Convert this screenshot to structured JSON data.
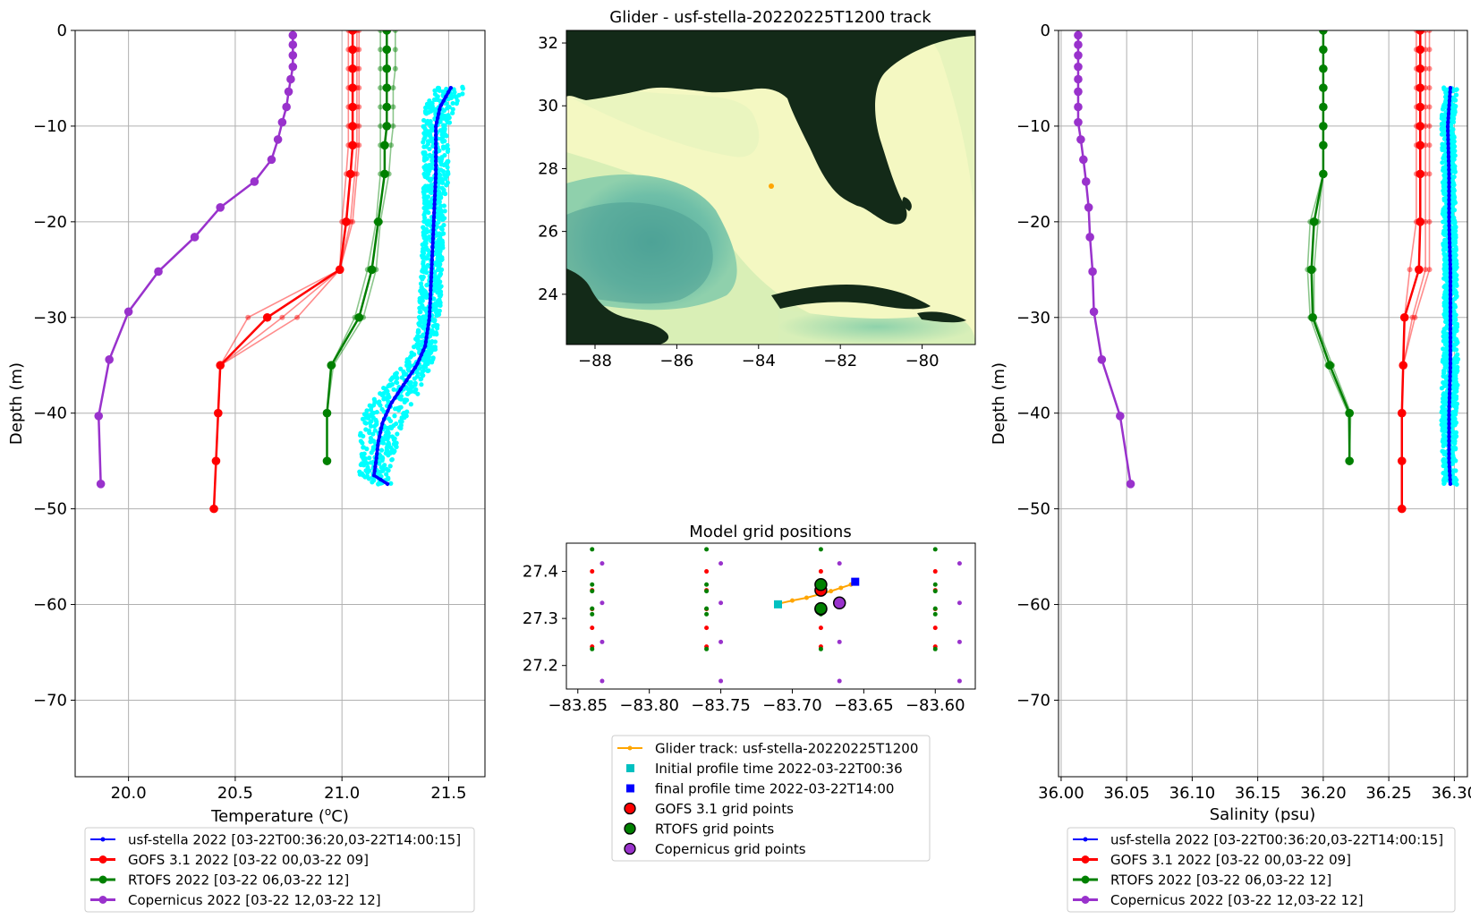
{
  "colors": {
    "glider": "#0000ff",
    "glider_scatter": "#00ffff",
    "gofs": "#ff0000",
    "rtofs": "#008000",
    "copernicus": "#9932cc",
    "track": "#ffa500",
    "initial_marker": "#00c0c0",
    "final_marker": "#0000ff",
    "land": "#132a18",
    "ocean_shallow": "#fbfcc8",
    "ocean_deep": "#5fb8a8"
  },
  "panels": {
    "map": {
      "title": "Glider - usf-stella-20220225T1200 track",
      "xticks": [
        "−88",
        "−86",
        "−84",
        "−82",
        "−80"
      ],
      "yticks": [
        "32",
        "30",
        "28",
        "26",
        "24"
      ]
    },
    "grid": {
      "title": "Model grid positions",
      "xticks": [
        "−83.85",
        "−83.80",
        "−83.75",
        "−83.70",
        "−83.65",
        "−83.60"
      ],
      "yticks": [
        "27.4",
        "27.3",
        "27.2"
      ]
    }
  },
  "legends": {
    "profile": [
      "usf-stella 2022 [03-22T00:36:20,03-22T14:00:15]",
      "GOFS 3.1 2022 [03-22 00,03-22 09]",
      "RTOFS 2022 [03-22 06,03-22 12]",
      "Copernicus 2022 [03-22 12,03-22 12]"
    ],
    "grid": [
      "Glider track: usf-stella-20220225T1200",
      "Initial profile time 2022-03-22T00:36",
      "final profile time 2022-03-22T14:00",
      "GOFS 3.1 grid points",
      "RTOFS grid points",
      "Copernicus grid points"
    ]
  },
  "chart_data": [
    {
      "type": "line",
      "title": "",
      "xlabel_main": "Temperature (",
      "xlabel_sup": "o",
      "xlabel_unit": "C)",
      "ylabel": "Depth (m)",
      "xlim": [
        19.75,
        21.67
      ],
      "ylim": [
        -78,
        0
      ],
      "xticks": [
        20.0,
        20.5,
        21.0,
        21.5
      ],
      "xtick_labels": [
        "20.0",
        "20.5",
        "21.0",
        "21.5"
      ],
      "yticks": [
        0,
        -10,
        -20,
        -30,
        -40,
        -50,
        -60,
        -70
      ],
      "ytick_labels": [
        "0",
        "−10",
        "−20",
        "−30",
        "−40",
        "−50",
        "−60",
        "−70"
      ],
      "grid": true,
      "series": [
        {
          "name": "usf-stella 2022 [03-22T00:36:20,03-22T14:00:15]",
          "depth": [
            -6,
            -8,
            -10,
            -12,
            -15,
            -20,
            -25,
            -30,
            -33,
            -35,
            -37,
            -39,
            -41,
            -43,
            -45,
            -46.5,
            -47.5
          ],
          "values": [
            21.51,
            21.46,
            21.44,
            21.44,
            21.44,
            21.43,
            21.42,
            21.41,
            21.39,
            21.35,
            21.29,
            21.23,
            21.19,
            21.17,
            21.16,
            21.15,
            21.22
          ],
          "band": [
            0.07,
            0.07,
            0.06,
            0.06,
            0.06,
            0.05,
            0.05,
            0.05,
            0.05,
            0.07,
            0.09,
            0.1,
            0.1,
            0.09,
            0.08,
            0.07,
            0.05
          ]
        },
        {
          "name": "GOFS 3.1 2022 [03-22 00,03-22 09]",
          "depth": [
            0,
            -2,
            -4,
            -6,
            -8,
            -10,
            -12,
            -15,
            -20,
            -25,
            -30,
            -35,
            -40,
            -45,
            -50
          ],
          "values": [
            21.05,
            21.05,
            21.05,
            21.05,
            21.05,
            21.05,
            21.05,
            21.04,
            21.02,
            20.99,
            20.65,
            20.43,
            20.42,
            20.41,
            20.4
          ],
          "ensemble": [
            [
              21.03,
              21.03,
              21.03,
              21.03,
              21.03,
              21.03,
              21.03,
              21.02,
              21.0,
              20.99,
              20.56,
              20.43,
              20.42,
              20.41,
              20.4
            ],
            [
              21.07,
              21.07,
              21.07,
              21.07,
              21.07,
              21.07,
              21.07,
              21.06,
              21.04,
              20.99,
              20.72,
              20.43,
              20.42,
              20.41,
              20.4
            ],
            [
              21.08,
              21.08,
              21.08,
              21.08,
              21.08,
              21.08,
              21.08,
              21.07,
              21.05,
              20.99,
              20.79,
              20.43,
              20.42,
              20.41,
              20.4
            ]
          ]
        },
        {
          "name": "RTOFS 2022 [03-22 06,03-22 12]",
          "depth": [
            0,
            -2,
            -4,
            -6,
            -8,
            -10,
            -12,
            -15,
            -20,
            -25,
            -30,
            -35,
            -40,
            -45
          ],
          "values": [
            21.21,
            21.21,
            21.21,
            21.21,
            21.21,
            21.21,
            21.2,
            21.2,
            21.17,
            21.14,
            21.08,
            20.95,
            20.93,
            20.93
          ],
          "ensemble": [
            [
              21.18,
              21.18,
              21.18,
              21.18,
              21.18,
              21.18,
              21.18,
              21.18,
              21.16,
              21.12,
              21.06,
              20.95,
              20.93,
              20.93
            ],
            [
              21.25,
              21.25,
              21.25,
              21.24,
              21.24,
              21.24,
              21.23,
              21.22,
              21.18,
              21.16,
              21.1,
              20.96,
              20.93,
              20.93
            ]
          ]
        },
        {
          "name": "Copernicus 2022 [03-22 12,03-22 12]",
          "depth": [
            -0.5,
            -1.5,
            -2.6,
            -3.8,
            -5.1,
            -6.4,
            -8,
            -9.6,
            -11.4,
            -13.5,
            -15.8,
            -18.5,
            -21.6,
            -25.2,
            -29.4,
            -34.4,
            -40.3,
            -47.4
          ],
          "values": [
            20.77,
            20.77,
            20.77,
            20.77,
            20.76,
            20.75,
            20.74,
            20.72,
            20.7,
            20.67,
            20.59,
            20.43,
            20.31,
            20.14,
            20.0,
            19.91,
            19.86,
            19.87
          ]
        }
      ]
    },
    {
      "type": "line",
      "title": "",
      "xlabel": "Salinity (psu)",
      "ylabel": "Depth (m)",
      "xlim": [
        35.998,
        36.31
      ],
      "ylim": [
        -78,
        0
      ],
      "xticks": [
        36.0,
        36.05,
        36.1,
        36.15,
        36.2,
        36.25,
        36.3
      ],
      "xtick_labels": [
        "36.00",
        "36.05",
        "36.10",
        "36.15",
        "36.20",
        "36.25",
        "36.30"
      ],
      "yticks": [
        0,
        -10,
        -20,
        -30,
        -40,
        -50,
        -60,
        -70
      ],
      "ytick_labels": [
        "0",
        "−10",
        "−20",
        "−30",
        "−40",
        "−50",
        "−60",
        "−70"
      ],
      "grid": true,
      "series": [
        {
          "name": "usf-stella 2022 [03-22T00:36:20,03-22T14:00:15]",
          "depth": [
            -6,
            -10,
            -15,
            -20,
            -25,
            -30,
            -35,
            -40,
            -45,
            -47.5
          ],
          "values": [
            36.297,
            36.295,
            36.296,
            36.296,
            36.297,
            36.297,
            36.297,
            36.296,
            36.296,
            36.297
          ],
          "band": [
            0.005,
            0.005,
            0.005,
            0.005,
            0.005,
            0.005,
            0.006,
            0.006,
            0.005,
            0.005
          ]
        },
        {
          "name": "GOFS 3.1 2022 [03-22 00,03-22 09]",
          "depth": [
            0,
            -2,
            -4,
            -6,
            -8,
            -10,
            -12,
            -15,
            -20,
            -25,
            -30,
            -35,
            -40,
            -45,
            -50
          ],
          "values": [
            36.274,
            36.274,
            36.274,
            36.274,
            36.274,
            36.274,
            36.274,
            36.274,
            36.274,
            36.273,
            36.262,
            36.261,
            36.26,
            36.26,
            36.26
          ],
          "ensemble": [
            [
              36.271,
              36.271,
              36.271,
              36.271,
              36.271,
              36.271,
              36.271,
              36.271,
              36.271,
              36.266,
              36.262,
              36.261,
              36.26,
              36.26,
              36.26
            ],
            [
              36.278,
              36.278,
              36.278,
              36.278,
              36.278,
              36.278,
              36.278,
              36.278,
              36.278,
              36.278,
              36.268,
              36.261,
              36.26,
              36.26,
              36.26
            ],
            [
              36.281,
              36.281,
              36.281,
              36.281,
              36.281,
              36.281,
              36.281,
              36.281,
              36.281,
              36.281,
              36.27,
              36.261,
              36.26,
              36.26,
              36.26
            ]
          ]
        },
        {
          "name": "RTOFS 2022 [03-22 06,03-22 12]",
          "depth": [
            0,
            -2,
            -4,
            -6,
            -8,
            -10,
            -12,
            -15,
            -20,
            -25,
            -30,
            -35,
            -40,
            -45
          ],
          "values": [
            36.2,
            36.2,
            36.2,
            36.2,
            36.2,
            36.2,
            36.2,
            36.2,
            36.193,
            36.191,
            36.192,
            36.205,
            36.22,
            36.22
          ],
          "ensemble": [
            [
              36.2,
              36.2,
              36.2,
              36.2,
              36.2,
              36.2,
              36.2,
              36.2,
              36.19,
              36.188,
              36.19,
              36.203,
              36.219,
              36.22
            ],
            [
              36.2,
              36.2,
              36.2,
              36.2,
              36.2,
              36.2,
              36.2,
              36.2,
              36.196,
              36.193,
              36.193,
              36.207,
              36.221,
              36.22
            ]
          ]
        },
        {
          "name": "Copernicus 2022 [03-22 12,03-22 12]",
          "depth": [
            -0.5,
            -1.5,
            -2.6,
            -3.8,
            -5.1,
            -6.4,
            -8,
            -9.6,
            -11.4,
            -13.5,
            -15.8,
            -18.5,
            -21.6,
            -25.2,
            -29.4,
            -34.4,
            -40.3,
            -47.4
          ],
          "values": [
            36.013,
            36.013,
            36.013,
            36.013,
            36.013,
            36.013,
            36.013,
            36.013,
            36.015,
            36.017,
            36.019,
            36.021,
            36.022,
            36.024,
            36.025,
            36.031,
            36.045,
            36.053
          ]
        }
      ]
    },
    {
      "type": "scatter",
      "title": "Model grid positions",
      "xlim": [
        -83.858,
        -83.572
      ],
      "ylim": [
        27.15,
        27.46
      ],
      "xticks": [
        -83.85,
        -83.8,
        -83.75,
        -83.7,
        -83.65,
        -83.6
      ],
      "yticks": [
        27.4,
        27.3,
        27.2
      ],
      "track": {
        "lon": [
          -83.71,
          -83.7,
          -83.69,
          -83.68,
          -83.673,
          -83.666,
          -83.659
        ],
        "lat": [
          27.331,
          27.338,
          27.344,
          27.352,
          27.358,
          27.365,
          27.372
        ]
      },
      "initial": {
        "lon": -83.71,
        "lat": 27.33
      },
      "final": {
        "lon": -83.656,
        "lat": 27.378
      },
      "gofs_grid": {
        "lon": [
          -83.84,
          -83.76,
          -83.68,
          -83.6
        ],
        "lat": [
          27.4,
          27.36,
          27.32,
          27.28,
          27.24
        ]
      },
      "rtofs_grid": {
        "lon": [
          -83.84,
          -83.76,
          -83.68,
          -83.6
        ],
        "lat": [
          27.447,
          27.372,
          27.358,
          27.309,
          27.321,
          27.235
        ]
      },
      "copernicus_grid": {
        "lon": [
          -83.833,
          -83.75,
          -83.667,
          -83.583
        ],
        "lat": [
          27.417,
          27.333,
          27.25,
          27.167
        ]
      },
      "highlight": {
        "gofs": [
          [
            -83.68,
            27.36
          ],
          [
            -83.68,
            27.32
          ]
        ],
        "rtofs": [
          [
            -83.68,
            27.372
          ],
          [
            -83.68,
            27.321
          ]
        ],
        "copernicus": [
          [
            -83.667,
            27.333
          ]
        ]
      }
    },
    {
      "type": "map",
      "title": "Glider - usf-stella-20220225T1200 track",
      "xlim": [
        -88.7,
        -78.7
      ],
      "ylim": [
        22.4,
        32.4
      ],
      "xticks": [
        -88,
        -86,
        -84,
        -82,
        -80
      ],
      "yticks": [
        32,
        30,
        28,
        26,
        24
      ],
      "glider_position": {
        "lon": -83.65,
        "lat": 27.33
      }
    }
  ]
}
